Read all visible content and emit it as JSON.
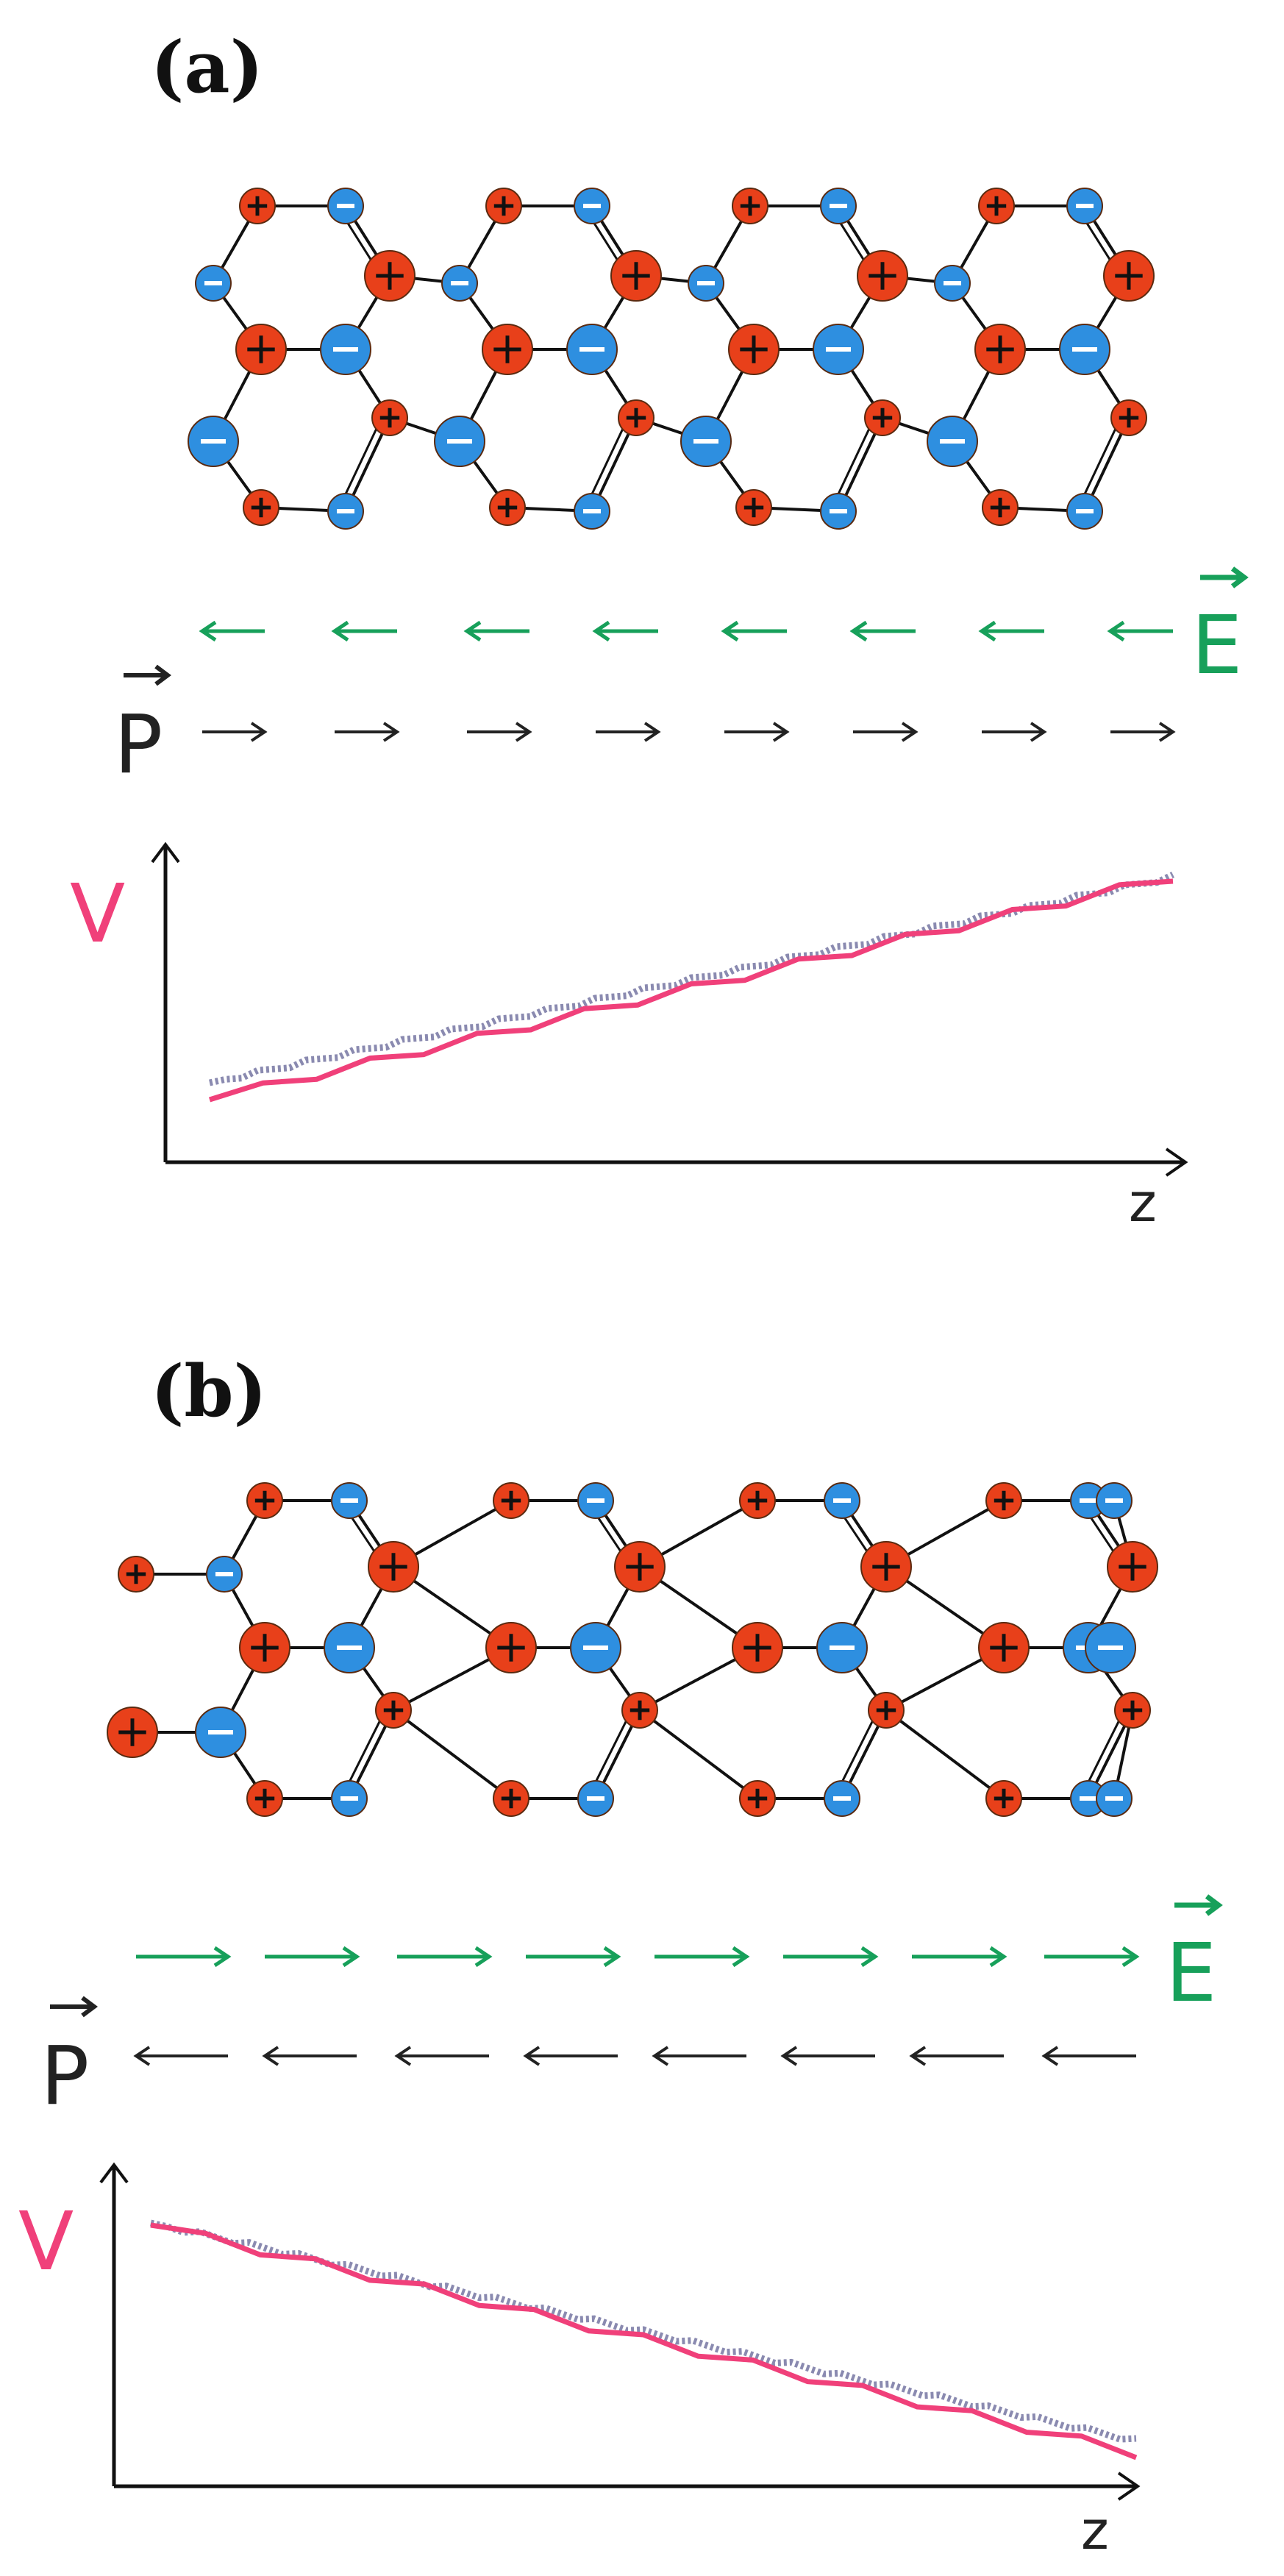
{
  "panels": [
    {
      "id": "a",
      "label": "(a)",
      "field_label": "E",
      "polarization_label": "P",
      "potential_label": "V",
      "axis_label": "z",
      "field_direction": "left",
      "polarization_direction": "right",
      "potential_trend": "increasing"
    },
    {
      "id": "b",
      "label": "(b)",
      "field_label": "E",
      "polarization_label": "P",
      "potential_label": "V",
      "axis_label": "z",
      "field_direction": "right",
      "polarization_direction": "left",
      "potential_trend": "decreasing"
    }
  ],
  "colors": {
    "positive_atom": "#e8401a",
    "negative_atom": "#2e8fe0",
    "field": "#17a05a",
    "polarization": "#222222",
    "potential_line": "#f0407a",
    "potential_average": "#8a8ab0"
  }
}
